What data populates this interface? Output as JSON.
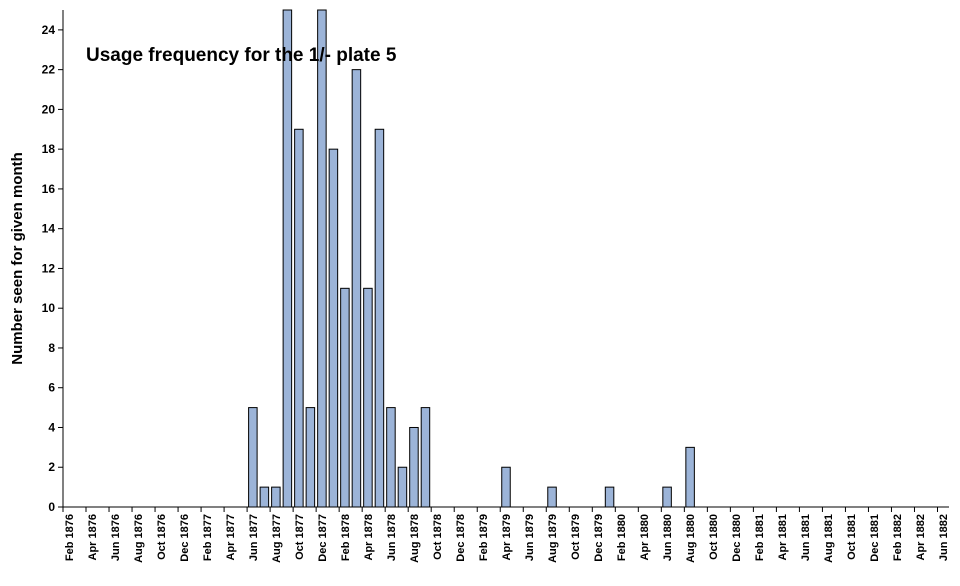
{
  "chart_data": {
    "type": "bar",
    "title": "Usage frequency for the 1/- plate 5",
    "xlabel": "",
    "ylabel": "Number seen for given month",
    "ylim": [
      0,
      25
    ],
    "yticks": [
      0,
      2,
      4,
      6,
      8,
      10,
      12,
      14,
      16,
      18,
      20,
      22,
      24
    ],
    "grid": false,
    "legend": "none",
    "bar_color": "#9cb4d8",
    "bar_edge": "#000000",
    "x_tick_labels": [
      "Feb 1876",
      "Apr 1876",
      "Jun 1876",
      "Aug 1876",
      "Oct 1876",
      "Dec 1876",
      "Feb 1877",
      "Apr 1877",
      "Jun 1877",
      "Aug 1877",
      "Oct 1877",
      "Dec 1877",
      "Feb 1878",
      "Apr 1878",
      "Jun 1878",
      "Aug 1878",
      "Oct 1878",
      "Dec 1878",
      "Feb 1879",
      "Apr 1879",
      "Jun 1879",
      "Aug 1879",
      "Oct 1879",
      "Dec 1879",
      "Feb 1880",
      "Apr 1880",
      "Jun 1880",
      "Aug 1880",
      "Oct 1880",
      "Dec 1880",
      "Feb 1881",
      "Apr 1881",
      "Jun 1881",
      "Aug 1881",
      "Oct 1881",
      "Dec 1881",
      "Feb 1882",
      "Apr 1882",
      "Jun 1882"
    ],
    "categories": [
      "Feb 1876",
      "Mar 1876",
      "Apr 1876",
      "May 1876",
      "Jun 1876",
      "Jul 1876",
      "Aug 1876",
      "Sep 1876",
      "Oct 1876",
      "Nov 1876",
      "Dec 1876",
      "Jan 1877",
      "Feb 1877",
      "Mar 1877",
      "Apr 1877",
      "May 1877",
      "Jun 1877",
      "Jul 1877",
      "Aug 1877",
      "Sep 1877",
      "Oct 1877",
      "Nov 1877",
      "Dec 1877",
      "Jan 1878",
      "Feb 1878",
      "Mar 1878",
      "Apr 1878",
      "May 1878",
      "Jun 1878",
      "Jul 1878",
      "Aug 1878",
      "Sep 1878",
      "Oct 1878",
      "Nov 1878",
      "Dec 1878",
      "Jan 1879",
      "Feb 1879",
      "Mar 1879",
      "Apr 1879",
      "May 1879",
      "Jun 1879",
      "Jul 1879",
      "Aug 1879",
      "Sep 1879",
      "Oct 1879",
      "Nov 1879",
      "Dec 1879",
      "Jan 1880",
      "Feb 1880",
      "Mar 1880",
      "Apr 1880",
      "May 1880",
      "Jun 1880",
      "Jul 1880",
      "Aug 1880",
      "Sep 1880",
      "Oct 1880",
      "Nov 1880",
      "Dec 1880",
      "Jan 1881",
      "Feb 1881",
      "Mar 1881",
      "Apr 1881",
      "May 1881",
      "Jun 1881",
      "Jul 1881",
      "Aug 1881",
      "Sep 1881",
      "Oct 1881",
      "Nov 1881",
      "Dec 1881",
      "Jan 1882",
      "Feb 1882",
      "Mar 1882",
      "Apr 1882",
      "May 1882",
      "Jun 1882"
    ],
    "values": [
      0,
      0,
      0,
      0,
      0,
      0,
      0,
      0,
      0,
      0,
      0,
      0,
      0,
      0,
      0,
      0,
      5,
      1,
      1,
      25,
      19,
      5,
      25,
      18,
      11,
      22,
      11,
      19,
      5,
      2,
      4,
      5,
      0,
      0,
      0,
      0,
      0,
      0,
      2,
      0,
      0,
      0,
      1,
      0,
      0,
      0,
      0,
      1,
      0,
      0,
      0,
      0,
      1,
      0,
      3,
      0,
      0,
      0,
      0,
      0,
      0,
      0,
      0,
      0,
      0,
      0,
      0,
      0,
      0,
      0,
      0,
      0,
      0,
      0,
      0,
      0,
      0
    ]
  }
}
